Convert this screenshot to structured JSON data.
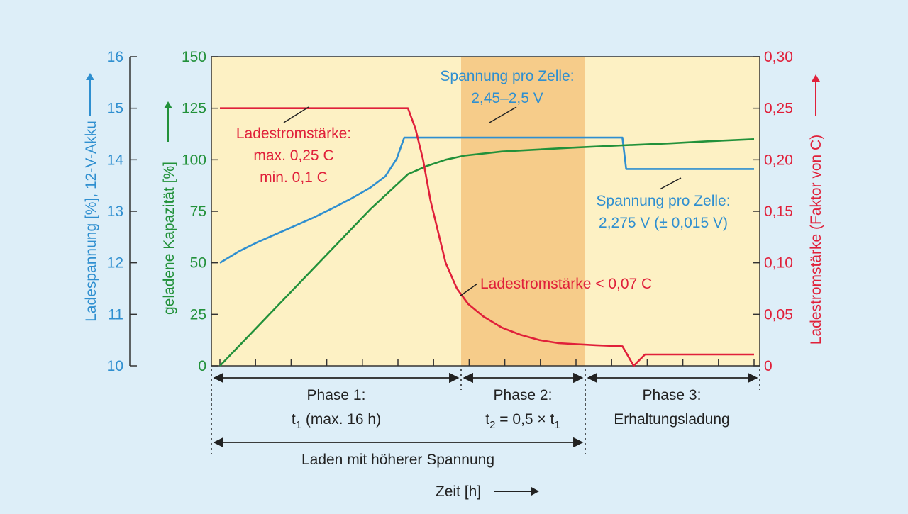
{
  "colors": {
    "blue": "#2f8fd0",
    "green": "#22913a",
    "red": "#e0203a",
    "plot_bg": "#fdf1c4",
    "phase2_bg": "#f6cc8a",
    "page_bg": "#ddeef8",
    "axis": "#333333"
  },
  "chart_data": {
    "type": "line",
    "xlabel": "Zeit [h]",
    "axes": {
      "voltage": {
        "label": "Ladespannung [%], 12-V-Akku",
        "range": [
          10,
          16
        ],
        "ticks": [
          "10",
          "11",
          "12",
          "13",
          "14",
          "15",
          "16"
        ]
      },
      "capacity": {
        "label": "geladene Kapazität [%]",
        "range": [
          0,
          150
        ],
        "ticks": [
          "0",
          "25",
          "50",
          "75",
          "100",
          "125",
          "150"
        ]
      },
      "current": {
        "label": "Ladestromstärke (Faktor von C)",
        "range": [
          0,
          0.3
        ],
        "ticks": [
          "0",
          "0,05",
          "0,10",
          "0,15",
          "0,20",
          "0,25",
          "0,30"
        ]
      }
    },
    "series": [
      {
        "key": "voltage",
        "axis": "voltage",
        "color": "#2f8fd0",
        "points": [
          [
            0.0,
            12.0
          ],
          [
            0.5,
            12.22
          ],
          [
            1.0,
            12.4
          ],
          [
            1.5,
            12.56
          ],
          [
            2.0,
            12.72
          ],
          [
            2.5,
            12.88
          ],
          [
            3.0,
            13.06
          ],
          [
            3.5,
            13.25
          ],
          [
            4.0,
            13.46
          ],
          [
            4.4,
            13.68
          ],
          [
            4.7,
            14.02
          ],
          [
            4.9,
            14.43
          ],
          [
            5.2,
            14.43
          ],
          [
            10.7,
            14.43
          ],
          [
            10.8,
            13.82
          ],
          [
            14.2,
            13.82
          ]
        ]
      },
      {
        "key": "capacity",
        "axis": "capacity",
        "color": "#22913a",
        "points": [
          [
            0.0,
            0
          ],
          [
            1.0,
            19
          ],
          [
            2.0,
            38
          ],
          [
            3.0,
            57
          ],
          [
            4.0,
            76
          ],
          [
            5.0,
            93
          ],
          [
            5.5,
            97
          ],
          [
            6.0,
            100
          ],
          [
            6.5,
            102
          ],
          [
            7.5,
            104
          ],
          [
            8.5,
            105
          ],
          [
            9.5,
            106
          ],
          [
            10.7,
            107
          ],
          [
            12.0,
            108
          ],
          [
            13.0,
            109
          ],
          [
            14.2,
            110
          ]
        ]
      },
      {
        "key": "current",
        "axis": "current",
        "color": "#e0203a",
        "points": [
          [
            0.0,
            0.25
          ],
          [
            5.0,
            0.25
          ],
          [
            5.2,
            0.23
          ],
          [
            5.4,
            0.2
          ],
          [
            5.6,
            0.16
          ],
          [
            5.8,
            0.13
          ],
          [
            6.0,
            0.1
          ],
          [
            6.3,
            0.075
          ],
          [
            6.6,
            0.06
          ],
          [
            7.0,
            0.048
          ],
          [
            7.5,
            0.037
          ],
          [
            8.0,
            0.03
          ],
          [
            8.5,
            0.025
          ],
          [
            9.0,
            0.022
          ],
          [
            9.5,
            0.021
          ],
          [
            10.0,
            0.02
          ],
          [
            10.7,
            0.019
          ],
          [
            11.0,
            0.0
          ],
          [
            11.3,
            0.011
          ],
          [
            14.2,
            0.011
          ]
        ]
      }
    ],
    "phase_boundaries": [
      6.3,
      10.7
    ]
  },
  "labels": {
    "voltage_axis": "Ladespannung [%], 12-V-Akku",
    "capacity_axis": "geladene Kapazität [%]",
    "current_axis": "Ladestromstärke (Faktor von C)",
    "x_axis": "Zeit [h]",
    "ann_current_1": "Ladestromstärke:",
    "ann_current_2": "max. 0,25 C",
    "ann_current_3": "min. 0,1 C",
    "ann_volt_top_1": "Spannung pro Zelle:",
    "ann_volt_top_2": "2,45–2,5 V",
    "ann_volt_bottom_1": "Spannung pro Zelle:",
    "ann_volt_bottom_2": "2,275 V (± 0,015 V)",
    "ann_current_low": "Ladestromstärke < 0,07 C"
  },
  "phases": {
    "phase1_title": "Phase 1:",
    "phase1_t": "t",
    "phase1_sub": "1",
    "phase1_rest": " (max. 16 h)",
    "phase2_title": "Phase 2:",
    "phase2_t": "t",
    "phase2_sub": "2",
    "phase2_mid": " = 0,5 × t",
    "phase2_sub2": "1",
    "phase3_title": "Phase 3:",
    "phase3_sub": "Erhaltungsladung",
    "charge_higher": "Laden mit höherer Spannung"
  }
}
